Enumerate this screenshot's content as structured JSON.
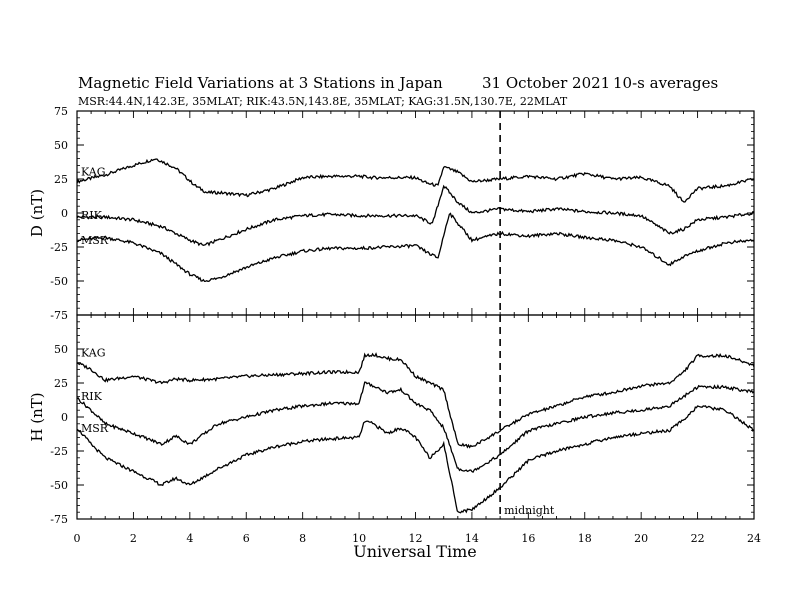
{
  "chart_data": {
    "type": "line",
    "title": {
      "main": "Magnetic Field Variations at 3 Stations in Japan",
      "date": "31 October 2021",
      "averaging": "10-s averages"
    },
    "subtitle": "MSR:44.4N,142.3E, 35MLAT;  RIK:43.5N,143.8E, 35MLAT;  KAG:31.5N,130.7E, 22MLAT",
    "xlabel": "Universal Time",
    "xlim": [
      0,
      24
    ],
    "xticks": [
      0,
      2,
      4,
      6,
      8,
      10,
      12,
      14,
      16,
      18,
      20,
      22,
      24
    ],
    "midnight_marker": {
      "x": 15,
      "label": "midnight"
    },
    "panels": [
      {
        "id": "D",
        "ylabel": "D (nT)",
        "ylim": [
          -75,
          75
        ],
        "yticks": [
          75,
          50,
          25,
          0,
          -25,
          -50,
          -75
        ],
        "series": [
          {
            "name": "KAG",
            "x": [
              0,
              1,
              2,
              2.8,
              3.5,
              4.2,
              4.6,
              5,
              6,
              7,
              8,
              9,
              10,
              10.5,
              11,
              12,
              12.4,
              12.8,
              13,
              13.5,
              14,
              15,
              16,
              17,
              18,
              19,
              20,
              21,
              21.5,
              22,
              23,
              24
            ],
            "values": [
              23,
              28,
              35,
              40,
              33,
              20,
              15,
              15,
              13,
              18,
              26,
              27,
              27,
              26,
              26,
              26,
              22,
              20,
              34,
              30,
              23,
              25,
              27,
              25,
              29,
              25,
              26,
              20,
              8,
              18,
              20,
              25
            ]
          },
          {
            "name": "RIK",
            "x": [
              0,
              1,
              2,
              3,
              4,
              4.5,
              5,
              6,
              7,
              8,
              9,
              10,
              11,
              12,
              12.6,
              13,
              13.5,
              14,
              15,
              16,
              17,
              18,
              19,
              20,
              21,
              21.5,
              22,
              23,
              24
            ],
            "values": [
              -3,
              -3,
              -5,
              -10,
              -20,
              -24,
              -20,
              -12,
              -5,
              -2,
              -1,
              -2,
              -2,
              -2,
              -8,
              20,
              8,
              0,
              3,
              1,
              3,
              1,
              0,
              -2,
              -15,
              -12,
              -5,
              -3,
              0
            ]
          },
          {
            "name": "MSR",
            "x": [
              0,
              1,
              2,
              3,
              4,
              4.5,
              5,
              6,
              7,
              8,
              9,
              10,
              11,
              12,
              12.5,
              12.8,
              13.2,
              13.6,
              14,
              15,
              16,
              17,
              18,
              19,
              20,
              21,
              21.5,
              22,
              23,
              24
            ],
            "values": [
              -20,
              -18,
              -22,
              -30,
              -45,
              -50,
              -48,
              -40,
              -33,
              -28,
              -26,
              -26,
              -25,
              -24,
              -30,
              -33,
              0,
              -10,
              -20,
              -15,
              -17,
              -15,
              -18,
              -20,
              -25,
              -38,
              -32,
              -28,
              -22,
              -20
            ]
          }
        ]
      },
      {
        "id": "H",
        "ylabel": "H (nT)",
        "ylim": [
          -75,
          75
        ],
        "yticks": [
          75,
          50,
          25,
          0,
          -25,
          -50,
          -75
        ],
        "series": [
          {
            "name": "KAG",
            "x": [
              0,
              0.5,
              1,
              2,
              3,
              3.5,
              4,
              5,
              6,
              7,
              8,
              9,
              10,
              10.2,
              10.5,
              11,
              11.5,
              12,
              12.5,
              13,
              13.5,
              14,
              15,
              16,
              17,
              18,
              19,
              20,
              21,
              21.5,
              22,
              23,
              24
            ],
            "values": [
              40,
              35,
              27,
              30,
              25,
              28,
              27,
              28,
              30,
              31,
              32,
              33,
              33,
              45,
              46,
              43,
              42,
              30,
              25,
              20,
              -20,
              -22,
              -10,
              2,
              8,
              15,
              18,
              23,
              25,
              33,
              45,
              45,
              38
            ]
          },
          {
            "name": "RIK",
            "x": [
              0,
              0.5,
              1,
              2,
              3,
              3.5,
              4,
              5,
              6,
              7,
              8,
              9,
              10,
              10.2,
              10.5,
              11,
              11.5,
              12,
              12.5,
              13,
              13.5,
              14,
              15,
              16,
              17,
              18,
              19,
              20,
              21,
              21.5,
              22,
              23,
              24
            ],
            "values": [
              14,
              5,
              -5,
              -12,
              -20,
              -14,
              -20,
              -5,
              0,
              5,
              8,
              10,
              10,
              25,
              23,
              18,
              20,
              10,
              5,
              -8,
              -38,
              -40,
              -28,
              -10,
              -5,
              0,
              3,
              5,
              8,
              15,
              22,
              22,
              18
            ]
          },
          {
            "name": "MSR",
            "x": [
              0,
              0.5,
              1,
              2,
              3,
              3.5,
              4,
              5,
              6,
              7,
              8,
              9,
              10,
              10.2,
              10.5,
              11,
              11.5,
              12,
              12.5,
              13,
              13.5,
              14,
              15,
              16,
              17,
              18,
              19,
              20,
              21,
              21.5,
              22,
              23,
              24
            ],
            "values": [
              -8,
              -20,
              -30,
              -40,
              -50,
              -45,
              -50,
              -38,
              -28,
              -22,
              -18,
              -16,
              -15,
              -3,
              -5,
              -12,
              -8,
              -15,
              -30,
              -20,
              -70,
              -68,
              -52,
              -32,
              -25,
              -20,
              -15,
              -12,
              -10,
              -2,
              8,
              5,
              -10
            ]
          }
        ]
      }
    ]
  }
}
